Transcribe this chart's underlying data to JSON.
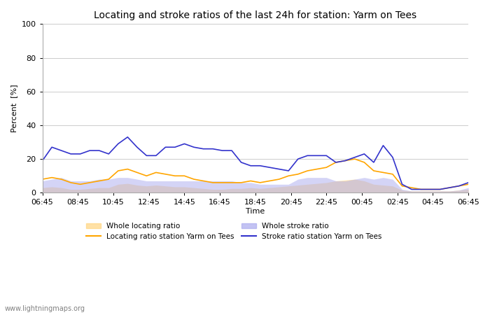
{
  "title": "Locating and stroke ratios of the last 24h for station: Yarm on Tees",
  "ylabel": "Percent  [%]",
  "xlabel": "Time",
  "watermark": "www.lightningmaps.org",
  "ylim": [
    0,
    100
  ],
  "yticks": [
    0,
    20,
    40,
    60,
    80,
    100
  ],
  "xtick_labels": [
    "06:45",
    "08:45",
    "10:45",
    "12:45",
    "14:45",
    "16:45",
    "18:45",
    "20:45",
    "22:45",
    "00:45",
    "02:45",
    "04:45",
    "06:45"
  ],
  "color_locating_line": "#FFA500",
  "color_locating_fill": "#FFD580",
  "color_stroke_line": "#3333CC",
  "color_stroke_fill": "#AAAAEE",
  "locating_line": [
    8,
    9,
    8,
    6,
    5,
    6,
    7,
    8,
    13,
    14,
    12,
    10,
    12,
    11,
    10,
    10,
    8,
    7,
    6,
    6,
    6,
    6,
    7,
    6,
    7,
    8,
    10,
    11,
    13,
    14,
    15,
    18,
    19,
    20,
    18,
    13,
    12,
    11,
    4,
    3,
    2,
    2,
    2,
    3,
    4,
    5
  ],
  "locating_fill": [
    3,
    3.5,
    3,
    2,
    2,
    2.5,
    3,
    3,
    5,
    5.5,
    4.5,
    4,
    4.5,
    4,
    3.5,
    3.5,
    3,
    2.5,
    2,
    2,
    2.5,
    2.5,
    3,
    2.5,
    3,
    3.5,
    4,
    4.5,
    5,
    5.5,
    6,
    7,
    7.5,
    8,
    7,
    5,
    4.5,
    4,
    1.5,
    1,
    1,
    1,
    1,
    1,
    1.5,
    2
  ],
  "stroke_line": [
    19,
    27,
    25,
    23,
    23,
    25,
    25,
    23,
    29,
    33,
    27,
    22,
    22,
    27,
    27,
    29,
    27,
    26,
    26,
    25,
    25,
    18,
    16,
    16,
    15,
    14,
    13,
    20,
    22,
    22,
    22,
    18,
    19,
    21,
    23,
    18,
    28,
    21,
    5,
    2,
    2,
    2,
    2,
    3,
    4,
    6
  ],
  "stroke_fill": [
    7,
    8,
    9,
    7,
    7,
    7,
    8,
    8,
    9,
    9,
    8,
    7,
    7,
    7,
    7,
    7,
    7,
    7,
    7,
    7,
    7,
    6,
    6,
    5,
    5,
    5,
    5,
    8,
    9,
    9,
    9,
    7,
    7,
    8,
    9,
    8,
    9,
    8,
    2,
    1,
    1,
    1,
    1,
    1,
    1.5,
    3
  ]
}
